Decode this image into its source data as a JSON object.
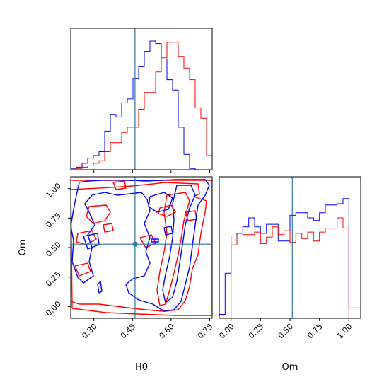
{
  "chart_data": {
    "type": "corner",
    "parameters": [
      "H0",
      "Om"
    ],
    "truth": {
      "H0": 0.45,
      "Om": 0.51,
      "line_color": "#3274a1"
    },
    "series": [
      {
        "color": "#0000ff"
      },
      {
        "color": "#ff0000"
      }
    ],
    "panels": [
      {
        "id": "hist-H0",
        "type": "step-histogram",
        "x": "H0",
        "xlim": [
          0.21,
          0.76
        ],
        "bin_edges": [
          0.21,
          0.232,
          0.254,
          0.276,
          0.298,
          0.32,
          0.342,
          0.364,
          0.386,
          0.408,
          0.43,
          0.452,
          0.474,
          0.496,
          0.518,
          0.54,
          0.562,
          0.584,
          0.606,
          0.628,
          0.65,
          0.672,
          0.694,
          0.716,
          0.738,
          0.76
        ],
        "series_counts": [
          [
            0.01,
            0.02,
            0.05,
            0.09,
            0.11,
            0.14,
            0.3,
            0.43,
            0.41,
            0.52,
            0.55,
            0.71,
            0.8,
            0.92,
            1.0,
            0.98,
            0.86,
            0.7,
            0.62,
            0.33,
            0.12,
            0.01,
            0,
            0,
            0
          ],
          [
            0,
            0.01,
            0.02,
            0.03,
            0.05,
            0.07,
            0.14,
            0.21,
            0.21,
            0.29,
            0.33,
            0.33,
            0.47,
            0.6,
            0.6,
            0.76,
            0.87,
            0.99,
            0.99,
            0.88,
            0.79,
            0.7,
            0.48,
            0.4,
            0.11
          ]
        ]
      },
      {
        "id": "contour-H0-Om",
        "type": "2d-contour",
        "x": "H0",
        "y": "Om",
        "xlim": [
          0.21,
          0.76
        ],
        "ylim": [
          -0.1,
          1.1
        ],
        "xticks": [
          "0.30",
          "0.45",
          "0.60",
          "0.75"
        ],
        "yticks": [
          "0.00",
          "0.25",
          "0.50",
          "0.75",
          "1.00"
        ],
        "xlabel": "H0",
        "ylabel": "Om"
      },
      {
        "id": "hist-Om",
        "type": "step-histogram",
        "x": "Om",
        "xlim": [
          -0.1,
          1.1
        ],
        "xticks": [
          "0.00",
          "0.25",
          "0.50",
          "0.75",
          "1.00"
        ],
        "xlabel": "Om",
        "bin_edges": [
          -0.1,
          -0.05,
          0,
          0.05,
          0.1,
          0.15,
          0.2,
          0.25,
          0.3,
          0.35,
          0.4,
          0.45,
          0.5,
          0.55,
          0.6,
          0.65,
          0.7,
          0.75,
          0.8,
          0.85,
          0.9,
          0.95,
          1,
          1.05,
          1.1
        ],
        "series_counts": [
          [
            0.03,
            0.35,
            0.64,
            0.66,
            0.71,
            0.78,
            0.71,
            0.66,
            0.73,
            0.73,
            0.6,
            0.6,
            0.8,
            0.82,
            0.82,
            0.78,
            0.76,
            0.82,
            0.88,
            0.88,
            0.89,
            0.93,
            0.08,
            0.08
          ],
          [
            0,
            0,
            0.57,
            0.64,
            0.65,
            0.65,
            0.67,
            0.58,
            0.63,
            0.71,
            0.65,
            0.68,
            0.59,
            0.66,
            0.62,
            0.67,
            0.6,
            0.67,
            0.7,
            0.7,
            0.78,
            0.7,
            0,
            0
          ]
        ]
      }
    ]
  }
}
